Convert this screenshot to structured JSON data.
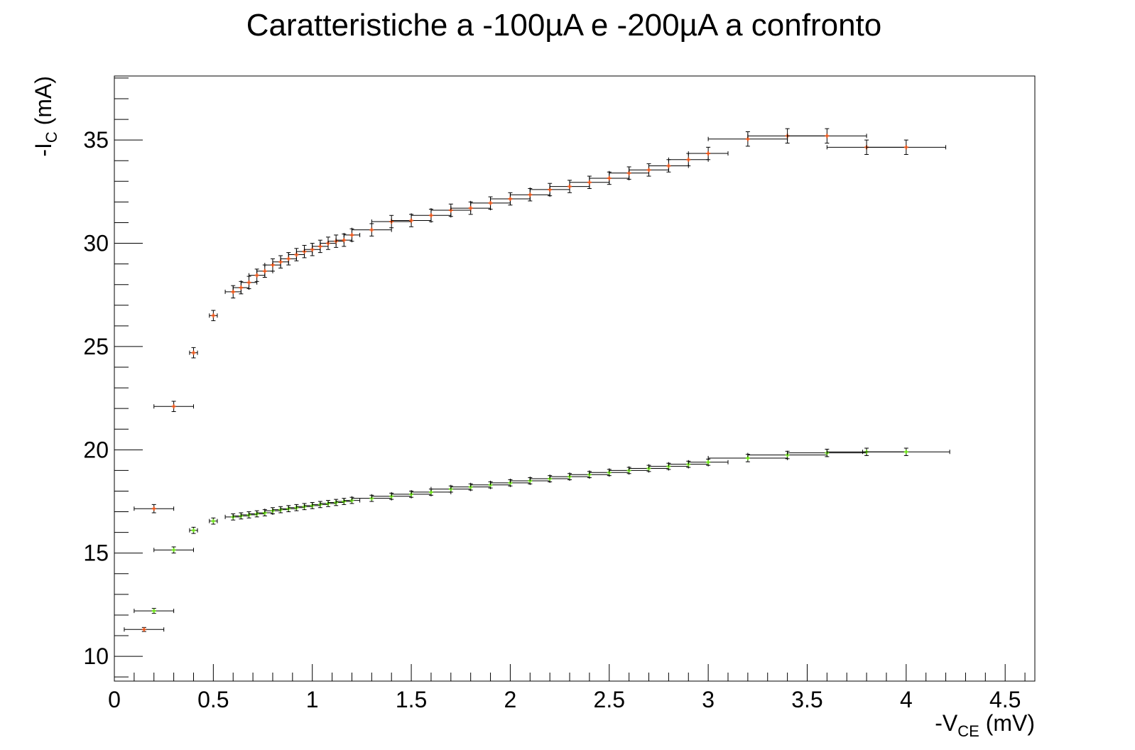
{
  "chart_data": {
    "type": "scatter",
    "title": "Caratteristiche a -100µA e -200µA a confronto",
    "xlabel": {
      "main": "-V",
      "sub": "CE",
      "unit": " (mV)"
    },
    "ylabel": {
      "main": "-I",
      "sub": "C",
      "unit": " (mA)"
    },
    "xlim": [
      0,
      4.65
    ],
    "ylim": [
      8.8,
      38.1
    ],
    "x_ticks": [
      0,
      0.5,
      1,
      1.5,
      2,
      2.5,
      3,
      3.5,
      4,
      4.5
    ],
    "x_tick_labels": [
      "0",
      "0.5",
      "1",
      "1.5",
      "2",
      "2.5",
      "3",
      "3.5",
      "4",
      "4.5"
    ],
    "y_ticks": [
      10,
      15,
      20,
      25,
      30,
      35
    ],
    "y_tick_labels": [
      "10",
      "15",
      "20",
      "25",
      "30",
      "35"
    ],
    "grid": false,
    "series": [
      {
        "color": "#e8561c",
        "x": [
          0.15,
          0.2,
          0.3,
          0.4,
          0.5,
          0.6,
          0.64,
          0.68,
          0.72,
          0.76,
          0.8,
          0.84,
          0.88,
          0.92,
          0.96,
          1.0,
          1.04,
          1.08,
          1.12,
          1.16,
          1.2,
          1.3,
          1.4,
          1.5,
          1.6,
          1.7,
          1.8,
          1.9,
          2.0,
          2.1,
          2.2,
          2.3,
          2.4,
          2.5,
          2.6,
          2.7,
          2.8,
          2.9,
          3.0,
          3.2,
          3.4,
          3.6,
          3.8,
          4.0
        ],
        "y": [
          11.3,
          17.15,
          22.1,
          24.7,
          26.5,
          27.65,
          27.85,
          28.1,
          28.45,
          28.65,
          28.95,
          29.1,
          29.25,
          29.45,
          29.6,
          29.7,
          29.85,
          30.0,
          30.1,
          30.15,
          30.4,
          30.65,
          31.05,
          31.1,
          31.35,
          31.6,
          31.7,
          31.95,
          32.15,
          32.35,
          32.6,
          32.75,
          32.95,
          33.15,
          33.4,
          33.55,
          33.75,
          34.05,
          34.35,
          35.05,
          35.2,
          35.2,
          34.65,
          34.65
        ],
        "xerr": [
          0.1,
          0.1,
          0.1,
          0.02,
          0.02,
          0.04,
          0.04,
          0.04,
          0.04,
          0.04,
          0.04,
          0.04,
          0.04,
          0.04,
          0.04,
          0.04,
          0.04,
          0.04,
          0.04,
          0.04,
          0.04,
          0.1,
          0.1,
          0.1,
          0.1,
          0.1,
          0.1,
          0.1,
          0.1,
          0.1,
          0.1,
          0.1,
          0.1,
          0.1,
          0.1,
          0.1,
          0.1,
          0.1,
          0.1,
          0.2,
          0.2,
          0.2,
          0.2,
          0.2
        ],
        "yerr": [
          0.1,
          0.2,
          0.25,
          0.25,
          0.25,
          0.3,
          0.3,
          0.3,
          0.3,
          0.3,
          0.3,
          0.3,
          0.3,
          0.3,
          0.3,
          0.3,
          0.3,
          0.3,
          0.3,
          0.3,
          0.3,
          0.3,
          0.3,
          0.3,
          0.3,
          0.3,
          0.3,
          0.3,
          0.3,
          0.3,
          0.3,
          0.3,
          0.3,
          0.3,
          0.3,
          0.3,
          0.3,
          0.3,
          0.3,
          0.35,
          0.35,
          0.35,
          0.35,
          0.35
        ]
      },
      {
        "color": "#6ee01c",
        "x": [
          0.2,
          0.3,
          0.4,
          0.5,
          0.6,
          0.64,
          0.68,
          0.72,
          0.76,
          0.8,
          0.84,
          0.88,
          0.92,
          0.96,
          1.0,
          1.04,
          1.08,
          1.12,
          1.16,
          1.2,
          1.3,
          1.4,
          1.5,
          1.6,
          1.7,
          1.8,
          1.9,
          2.0,
          2.1,
          2.2,
          2.3,
          2.4,
          2.5,
          2.6,
          2.7,
          2.8,
          2.9,
          3.0,
          3.2,
          3.4,
          3.6,
          3.8,
          4.0
        ],
        "y": [
          12.2,
          15.15,
          16.1,
          16.55,
          16.75,
          16.8,
          16.85,
          16.9,
          16.95,
          17.05,
          17.1,
          17.15,
          17.2,
          17.25,
          17.3,
          17.35,
          17.4,
          17.45,
          17.5,
          17.55,
          17.65,
          17.75,
          17.85,
          17.95,
          18.1,
          18.2,
          18.3,
          18.4,
          18.5,
          18.6,
          18.7,
          18.8,
          18.9,
          19.0,
          19.1,
          19.2,
          19.3,
          19.4,
          19.6,
          19.75,
          19.85,
          19.9,
          19.9
        ],
        "xerr": [
          0.1,
          0.1,
          0.02,
          0.02,
          0.04,
          0.04,
          0.04,
          0.04,
          0.04,
          0.04,
          0.04,
          0.04,
          0.04,
          0.04,
          0.04,
          0.04,
          0.04,
          0.04,
          0.04,
          0.04,
          0.1,
          0.1,
          0.1,
          0.1,
          0.1,
          0.1,
          0.1,
          0.1,
          0.1,
          0.1,
          0.1,
          0.1,
          0.1,
          0.1,
          0.1,
          0.1,
          0.1,
          0.1,
          0.2,
          0.2,
          0.2,
          0.2,
          0.22
        ],
        "yerr": [
          0.12,
          0.15,
          0.15,
          0.15,
          0.15,
          0.15,
          0.15,
          0.15,
          0.15,
          0.15,
          0.15,
          0.15,
          0.15,
          0.15,
          0.15,
          0.15,
          0.15,
          0.15,
          0.15,
          0.15,
          0.15,
          0.15,
          0.15,
          0.15,
          0.15,
          0.15,
          0.15,
          0.15,
          0.15,
          0.15,
          0.15,
          0.15,
          0.15,
          0.15,
          0.15,
          0.15,
          0.15,
          0.15,
          0.18,
          0.18,
          0.18,
          0.18,
          0.18
        ]
      }
    ]
  }
}
